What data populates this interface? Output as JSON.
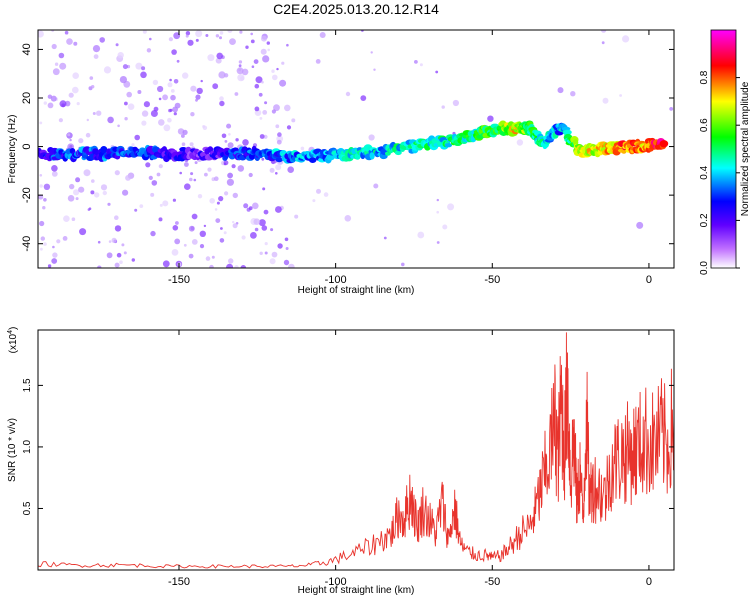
{
  "title": "C2E4.2025.013.20.12.R14",
  "chart_data": [
    {
      "type": "heatmap",
      "xlabel": "Height of straight line (km)",
      "ylabel": "Frequency (Hz)",
      "xlim": [
        -195,
        8
      ],
      "ylim": [
        -50,
        48
      ],
      "x_ticks": [
        -150,
        -100,
        -50,
        0
      ],
      "y_ticks": [
        -40,
        -20,
        0,
        20,
        40
      ],
      "x_tick_labels": [
        "-150",
        "-100",
        "-50",
        "0"
      ],
      "y_tick_labels": [
        "-40",
        "-20",
        "0",
        "20",
        "40"
      ],
      "colorbar": {
        "label": "Normalized spectral amplitude",
        "range": [
          0,
          1
        ],
        "ticks": [
          0.0,
          0.2,
          0.4,
          0.6,
          0.8
        ],
        "tick_labels": [
          "0.0",
          "0.2",
          "0.4",
          "0.6",
          "0.8"
        ],
        "colors": [
          "#ffffff",
          "#a000ff",
          "#0000ff",
          "#00ffff",
          "#00ff00",
          "#ffff00",
          "#ff0000",
          "#ff00ff"
        ]
      },
      "ridge": [
        {
          "x": -195,
          "y": -3,
          "amp": 0.25
        },
        {
          "x": -185,
          "y": -3,
          "amp": 0.3
        },
        {
          "x": -175,
          "y": -3,
          "amp": 0.3
        },
        {
          "x": -165,
          "y": -2,
          "amp": 0.3
        },
        {
          "x": -155,
          "y": -3,
          "amp": 0.25
        },
        {
          "x": -145,
          "y": -3,
          "amp": 0.15
        },
        {
          "x": -135,
          "y": -3,
          "amp": 0.25
        },
        {
          "x": -125,
          "y": -3,
          "amp": 0.3
        },
        {
          "x": -115,
          "y": -4,
          "amp": 0.35
        },
        {
          "x": -105,
          "y": -4,
          "amp": 0.35
        },
        {
          "x": -95,
          "y": -3,
          "amp": 0.4
        },
        {
          "x": -85,
          "y": -2,
          "amp": 0.4
        },
        {
          "x": -75,
          "y": 0,
          "amp": 0.45
        },
        {
          "x": -65,
          "y": 2,
          "amp": 0.45
        },
        {
          "x": -55,
          "y": 5,
          "amp": 0.5
        },
        {
          "x": -48,
          "y": 8,
          "amp": 0.55
        },
        {
          "x": -42,
          "y": 7,
          "amp": 0.7
        },
        {
          "x": -38,
          "y": 8,
          "amp": 0.5
        },
        {
          "x": -34,
          "y": 1,
          "amp": 0.45
        },
        {
          "x": -28,
          "y": 8,
          "amp": 0.35
        },
        {
          "x": -22,
          "y": -2,
          "amp": 0.65
        },
        {
          "x": -15,
          "y": -1,
          "amp": 0.7
        },
        {
          "x": -8,
          "y": 0,
          "amp": 0.8
        },
        {
          "x": -2,
          "y": 0,
          "amp": 0.75
        },
        {
          "x": 5,
          "y": 1,
          "amp": 0.9
        }
      ]
    },
    {
      "type": "line",
      "xlabel": "Height of straight line (km)",
      "ylabel": "SNR (10 * v/v)",
      "multiplier": "(x10",
      "multiplier_exp": "4",
      "multiplier_close": ")",
      "xlim": [
        -195,
        8
      ],
      "ylim": [
        0,
        1.95
      ],
      "x_ticks": [
        -150,
        -100,
        -50,
        0
      ],
      "y_ticks": [
        0.5,
        1.0,
        1.5
      ],
      "x_tick_labels": [
        "-150",
        "-100",
        "-50",
        "0"
      ],
      "y_tick_labels": [
        "0.5",
        "1.0",
        "1.5"
      ],
      "color": "#e8332c",
      "series": [
        {
          "x": [
            -195,
            -185,
            -175,
            -165,
            -155,
            -145,
            -135,
            -125,
            -115,
            -108,
            -102,
            -96,
            -90,
            -85,
            -82,
            -80,
            -78,
            -76,
            -74,
            -72,
            -70,
            -68,
            -66,
            -64,
            -62,
            -60,
            -58,
            -55,
            -52,
            -50,
            -47,
            -44,
            -41,
            -38,
            -36,
            -34,
            -32,
            -30,
            -29,
            -28,
            -27,
            -26,
            -25,
            -24,
            -23,
            -22,
            -21,
            -20,
            -19,
            -18,
            -16,
            -14,
            -12,
            -10,
            -8,
            -6,
            -4,
            -2,
            0,
            2,
            4,
            6,
            8
          ],
          "y": [
            0.05,
            0.04,
            0.04,
            0.04,
            0.03,
            0.03,
            0.03,
            0.03,
            0.03,
            0.04,
            0.07,
            0.12,
            0.18,
            0.25,
            0.3,
            0.45,
            0.42,
            0.62,
            0.35,
            0.5,
            0.4,
            0.3,
            0.55,
            0.25,
            0.5,
            0.2,
            0.15,
            0.12,
            0.12,
            0.1,
            0.12,
            0.2,
            0.3,
            0.35,
            0.5,
            0.7,
            0.9,
            1.2,
            0.9,
            1.4,
            0.95,
            1.55,
            0.7,
            1.1,
            0.55,
            0.8,
            0.4,
            1.3,
            0.6,
            0.7,
            0.65,
            0.6,
            0.85,
            0.9,
            0.95,
            0.95,
            0.98,
            1.05,
            1.05,
            1.0,
            1.1,
            1.0,
            1.25
          ]
        }
      ]
    }
  ]
}
